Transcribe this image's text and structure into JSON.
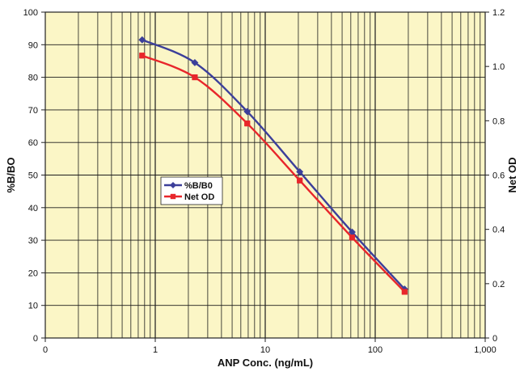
{
  "chart_data": {
    "type": "line",
    "xlabel": "ANP Conc. (ng/mL)",
    "ylabel": "%B/BO",
    "y2label": "Net OD",
    "x_scale": "log",
    "xlim": [
      0.1,
      1000
    ],
    "ylim": [
      0,
      100
    ],
    "y2lim": [
      0,
      1.2
    ],
    "grid": true,
    "legend_position": "center-left",
    "x_ticks": [
      {
        "value": 0.1,
        "label": "0"
      },
      {
        "value": 1,
        "label": "1"
      },
      {
        "value": 10,
        "label": "10"
      },
      {
        "value": 100,
        "label": "100"
      },
      {
        "value": 1000,
        "label": "1,000"
      }
    ],
    "y_ticks": [
      "0",
      "10",
      "20",
      "30",
      "40",
      "50",
      "60",
      "70",
      "80",
      "90",
      "100"
    ],
    "y2_ticks": [
      "0",
      "0.2",
      "0.4",
      "0.6",
      "0.8",
      "1.0",
      "1.2"
    ],
    "series": [
      {
        "name": "%B/B0",
        "axis": "left",
        "color": "#3c3f9a",
        "marker": "diamond",
        "x": [
          0.76,
          2.29,
          6.86,
          20.6,
          61.7,
          185
        ],
        "y": [
          91.5,
          84.5,
          69.5,
          51,
          32.5,
          15
        ]
      },
      {
        "name": "Net OD",
        "axis": "right",
        "color": "#e8262b",
        "marker": "square",
        "x": [
          0.76,
          2.29,
          6.86,
          20.6,
          61.7,
          185
        ],
        "y": [
          1.04,
          0.96,
          0.79,
          0.58,
          0.37,
          0.17
        ]
      }
    ]
  }
}
